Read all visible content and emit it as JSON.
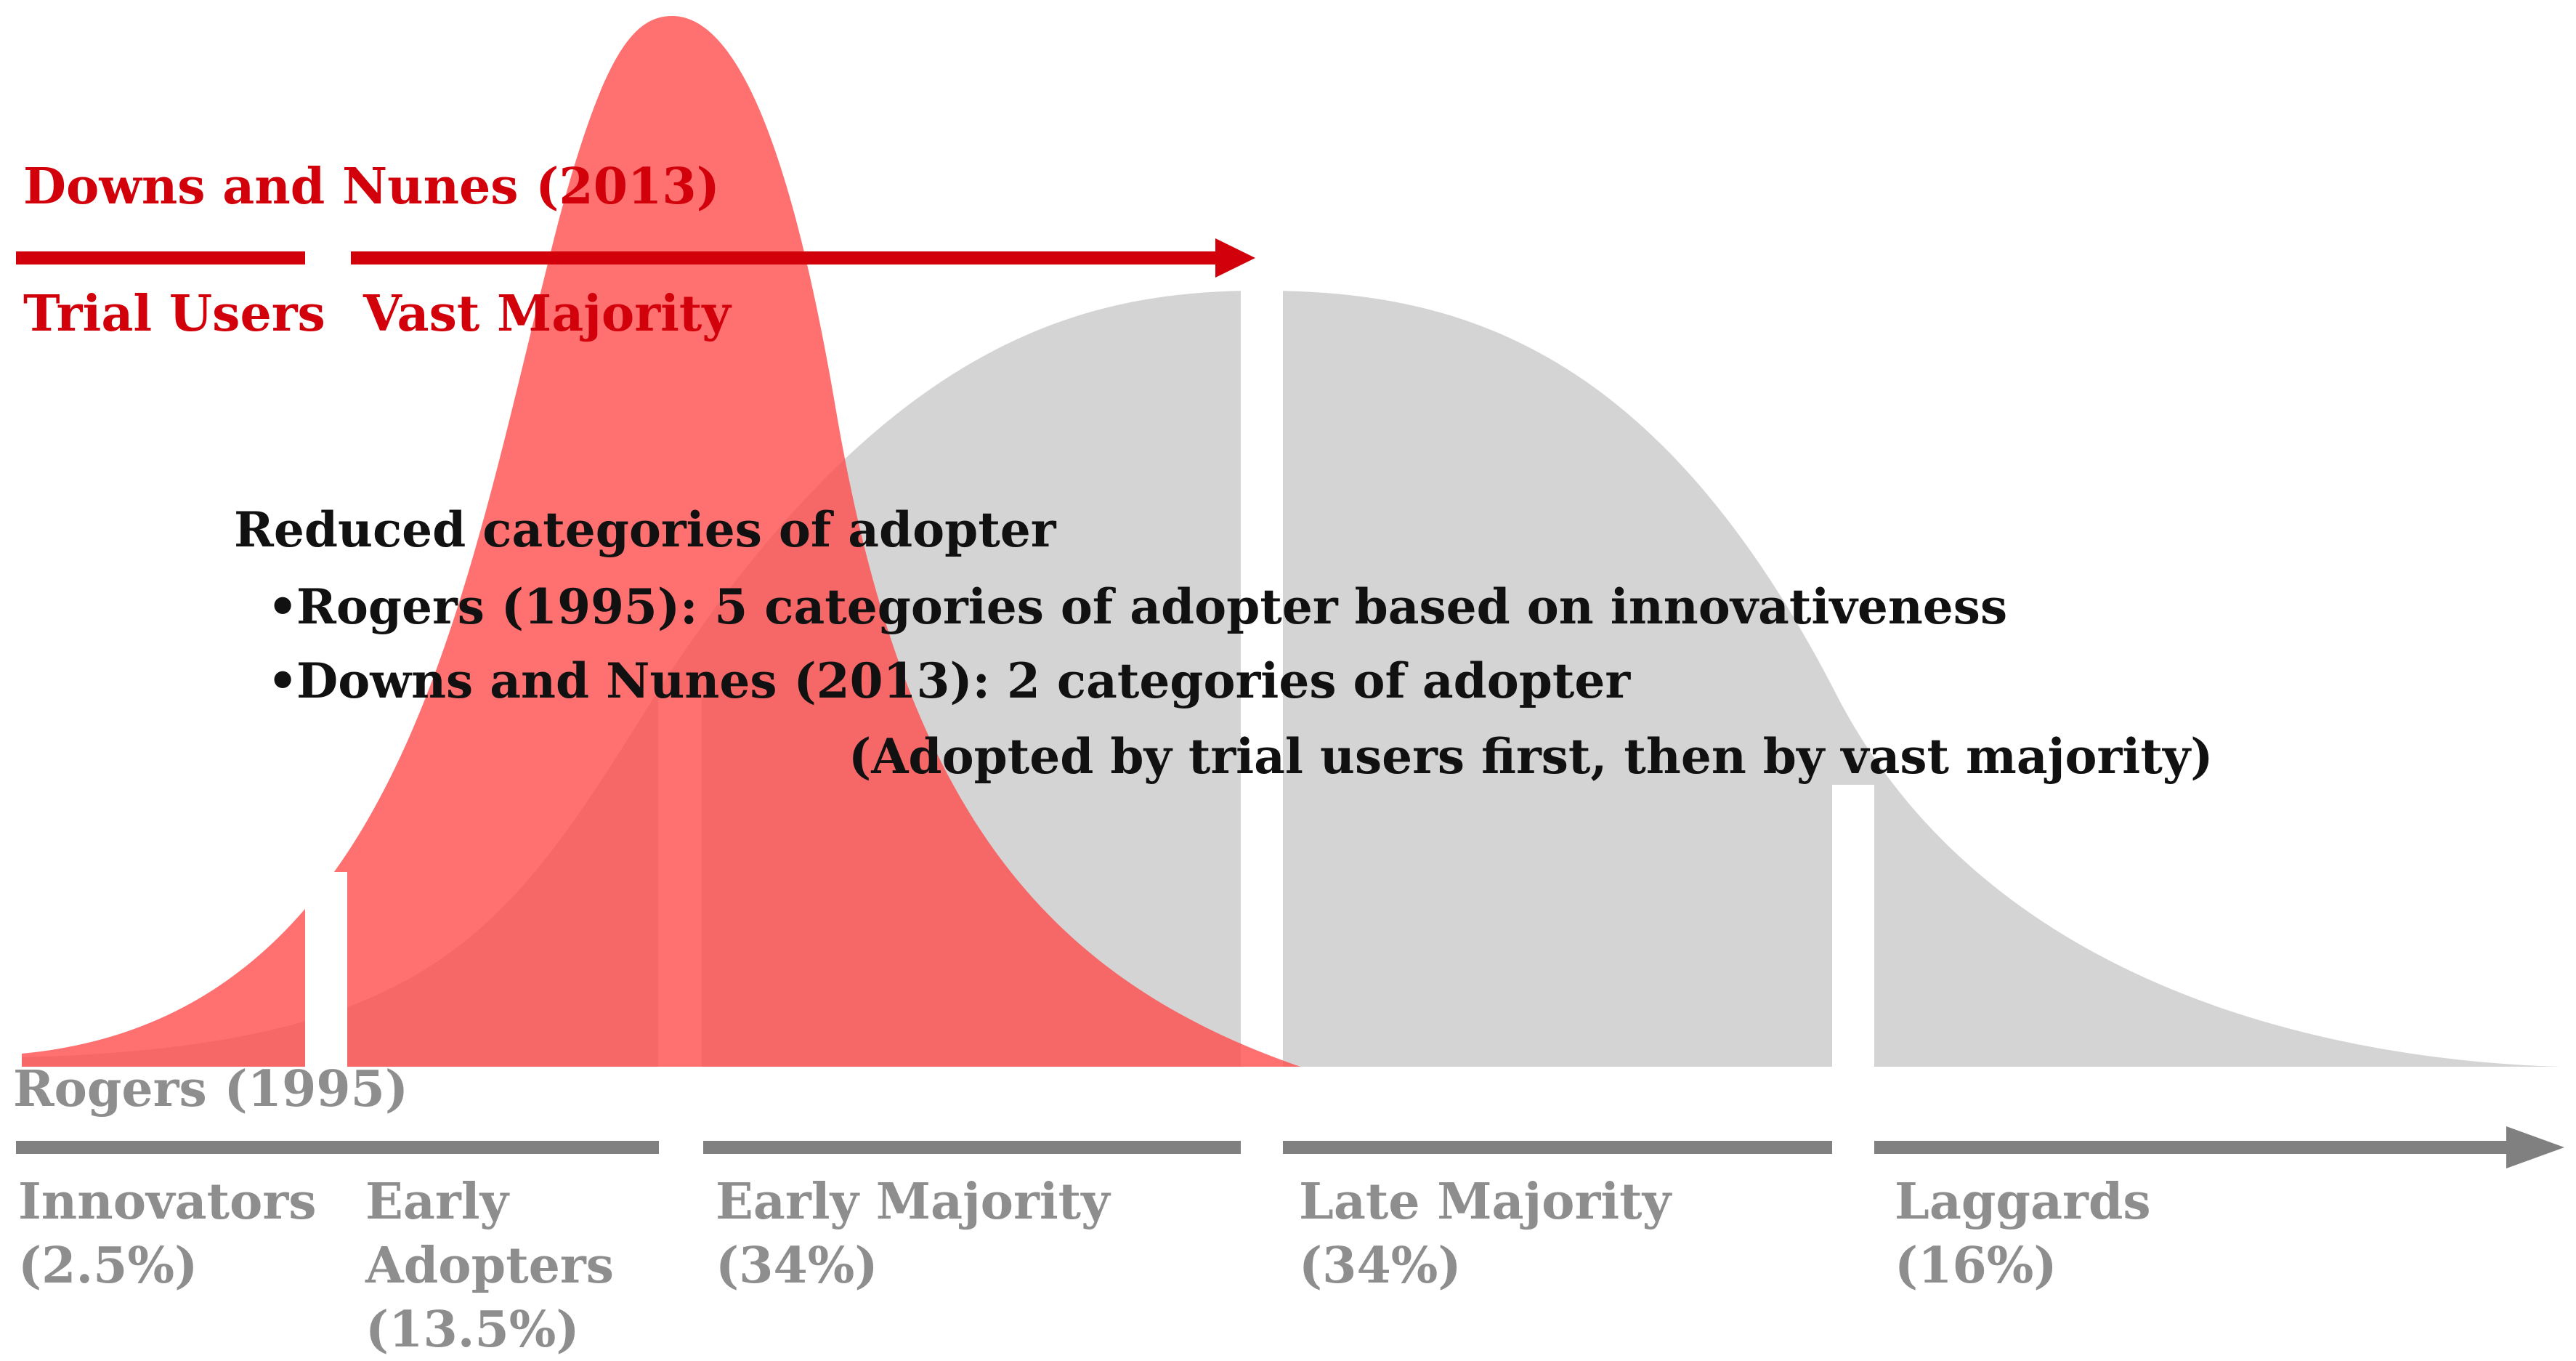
{
  "colors": {
    "rogers_curve": "#d4d4d4",
    "downs_curve": "#ff6b6b",
    "accent_red": "#d2000a",
    "axis_grey": "#808080",
    "grey_text": "#8e8e8e",
    "black_text": "#111111"
  },
  "downs_nunes": {
    "title": "Downs and Nunes (2013)",
    "trial_users": "Trial Users",
    "vast_majority": "Vast Majority"
  },
  "reduced_categories": {
    "heading": "Reduced categories of adopter",
    "bullet_symbol": "•",
    "bullets": [
      "Rogers (1995): 5 categories of adopter based on innovativeness",
      "Downs and Nunes (2013): 2 categories of adopter"
    ],
    "note": "(Adopted by trial users first, then by vast majority)"
  },
  "rogers": {
    "title": "Rogers (1995)",
    "categories": [
      {
        "name_lines": [
          "Innovators"
        ],
        "share": "(2.5%)"
      },
      {
        "name_lines": [
          "Early",
          "Adopters"
        ],
        "share": "(13.5%)"
      },
      {
        "name_lines": [
          "Early Majority"
        ],
        "share": "(34%)"
      },
      {
        "name_lines": [
          "Late Majority"
        ],
        "share": "(34%)"
      },
      {
        "name_lines": [
          "Laggards"
        ],
        "share": "(16%)"
      }
    ]
  }
}
